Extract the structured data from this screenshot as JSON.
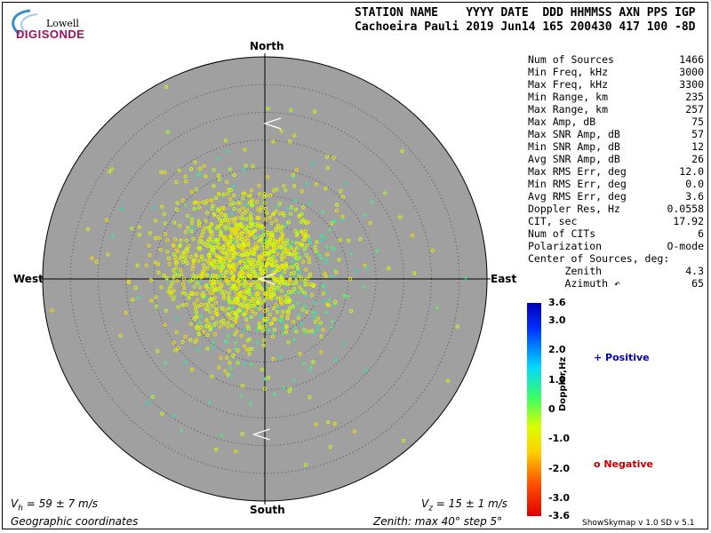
{
  "logo": {
    "line1": "Lowell",
    "line2": "DIGISONDE"
  },
  "header": {
    "line1": "STATION NAME    YYYY DATE  DDD HHMMSS AXN PPS IGP",
    "line2": "Cachoeira Pauli 2019 Jun14 165 200430 417 100 -8D"
  },
  "parameters": [
    {
      "label": "Num of Sources",
      "value": "1466"
    },
    {
      "label": "Min Freq, kHz",
      "value": "3000"
    },
    {
      "label": "Max Freq, kHz",
      "value": "3300"
    },
    {
      "label": "Min Range, km",
      "value": "235"
    },
    {
      "label": "Max Range, km",
      "value": "257"
    },
    {
      "label": "Max Amp, dB",
      "value": "75"
    },
    {
      "label": "Max SNR Amp, dB",
      "value": "57"
    },
    {
      "label": "Min SNR Amp, dB",
      "value": "12"
    },
    {
      "label": "Avg SNR Amp, dB",
      "value": "26"
    },
    {
      "label": "Max RMS Err, deg",
      "value": "12.0"
    },
    {
      "label": "Min RMS Err, deg",
      "value": "0.0"
    },
    {
      "label": "Avg RMS Err, deg",
      "value": "3.6"
    },
    {
      "label": "Doppler Res, Hz",
      "value": "0.0558"
    },
    {
      "label": "CIT, sec",
      "value": "17.92"
    },
    {
      "label": "Num of CITs",
      "value": "6"
    },
    {
      "label": "Polarization",
      "value": "O-mode"
    },
    {
      "label": "Center of Sources, deg:",
      "value": ""
    },
    {
      "label": "      Zenith",
      "value": "4.3"
    },
    {
      "label": "      Azimuth ↶",
      "value": "65"
    }
  ],
  "directions": {
    "north": "North",
    "south": "South",
    "east": "East",
    "west": "West"
  },
  "colorbar": {
    "title": "Doppler,Hz",
    "ticks": [
      "3.6",
      "3.0",
      "2.0",
      "1.0",
      "0",
      "-1.0",
      "-2.0",
      "-3.0",
      "-3.6"
    ]
  },
  "legend": {
    "positive": "+ Positive",
    "negative": "o Negative"
  },
  "footer": {
    "vh_prefix": "V",
    "vh_sub": "h",
    "vh_value": " = 59 ± 7 m/s",
    "vz_prefix": "V",
    "vz_sub": "z",
    "vz_value": " = 15 ± 1 m/s",
    "coords": "Geographic coordinates",
    "zenith": "Zenith: max 40°  step 5°",
    "version": "ShowSkymap v 1.0  SD v 5.1"
  },
  "chart_data": {
    "type": "scatter",
    "projection": "polar skymap (zenith angle radius, azimuth)",
    "zenith_max_deg": 40,
    "zenith_step_deg": 5,
    "center_of_sources": {
      "zenith_deg": 4.3,
      "azimuth_deg": 65
    },
    "doppler_range_hz": [
      -3.6,
      3.6
    ],
    "series": [
      {
        "name": "Positive",
        "marker": "+",
        "points_approx": 250,
        "cluster_center": {
          "east_deg": 0.5,
          "north_deg": -1.5
        },
        "spread_deg": 8
      },
      {
        "name": "Negative",
        "marker": "o",
        "points_approx": 1216,
        "cluster_center": {
          "east_deg": -4.0,
          "north_deg": 2.0
        },
        "spread_deg": 7
      }
    ],
    "doppler_vectors": [
      {
        "east_deg": 0,
        "north_deg": 28
      },
      {
        "east_deg": -2,
        "north_deg": -28
      },
      {
        "east_deg": -1,
        "north_deg": 0
      }
    ],
    "background_color": "#a0a0a0"
  }
}
